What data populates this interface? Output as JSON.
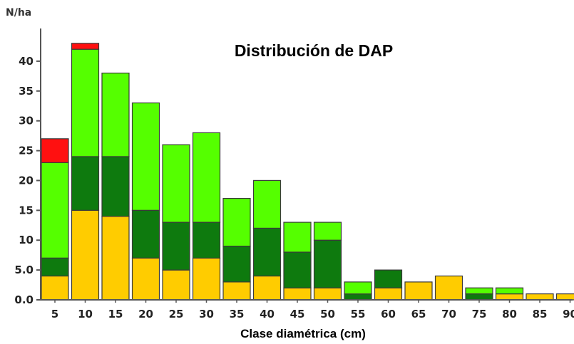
{
  "chart_data": {
    "type": "bar",
    "stacked": true,
    "title": "Distribución de DAP",
    "xlabel": "Clase diamétrica (cm)",
    "ylabel": "N/ha",
    "ylim": [
      0,
      45
    ],
    "yticks": [
      "0.0",
      "5.0",
      "10",
      "15",
      "20",
      "25",
      "30",
      "35",
      "40"
    ],
    "categories": [
      "5",
      "10",
      "15",
      "20",
      "25",
      "30",
      "35",
      "40",
      "45",
      "50",
      "55",
      "60",
      "65",
      "70",
      "75",
      "80",
      "85",
      "90"
    ],
    "series": [
      {
        "color": "#ffcc00",
        "values": [
          4,
          15,
          14,
          7,
          5,
          7,
          3,
          4,
          2,
          2,
          0,
          2,
          3,
          4,
          0,
          1,
          1,
          1
        ]
      },
      {
        "color": "#0e7a0e",
        "values": [
          3,
          9,
          10,
          8,
          8,
          6,
          6,
          8,
          6,
          8,
          1,
          3,
          0,
          0,
          1,
          0,
          0,
          0
        ]
      },
      {
        "color": "#55ff00",
        "values": [
          16,
          18,
          14,
          18,
          13,
          15,
          8,
          8,
          5,
          3,
          2,
          0,
          0,
          0,
          1,
          1,
          0,
          0
        ]
      },
      {
        "color": "#ff1010",
        "values": [
          4,
          1,
          0,
          0,
          0,
          0,
          0,
          0,
          0,
          0,
          0,
          0,
          0,
          0,
          0,
          0,
          0,
          0
        ]
      }
    ],
    "grid": false,
    "legend": "none"
  }
}
